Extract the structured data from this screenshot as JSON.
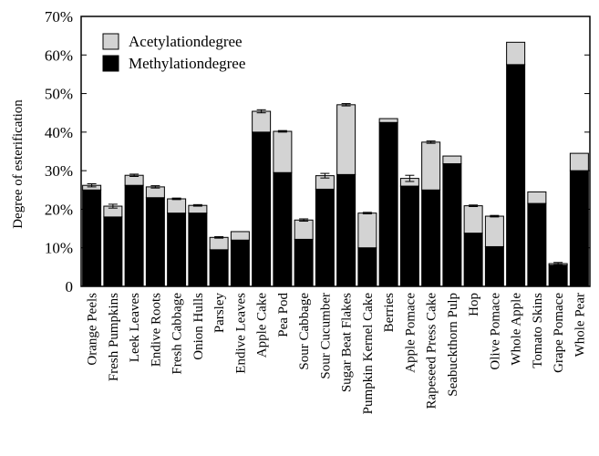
{
  "chart_data": {
    "type": "bar",
    "stacked": true,
    "title": "",
    "xlabel": "",
    "ylabel": "Degree of esterification",
    "ylim": [
      0,
      70
    ],
    "yticks": [
      "0",
      "10%",
      "20%",
      "30%",
      "40%",
      "50%",
      "60%",
      "70%"
    ],
    "categories": [
      "Orange Peels",
      "Fresh Pumpkins",
      "Leek Leaves",
      "Endive Roots",
      "Fresh Cabbage",
      "Onion Hulls",
      "Parsley",
      "Endive Leaves",
      "Apple Cake",
      "Pea Pod",
      "Sour Cabbage",
      "Sour Cucumber",
      "Sugar Beat Flakes",
      "Pumpkin Kernel Cake",
      "Berries",
      "Apple Pomace",
      "Rapeseed Press Cake",
      "Seabuckthorn Pulp",
      "Hop",
      "Olive Pomace",
      "Whole Apple",
      "Tomato Skins",
      "Grape Pomace",
      "Whole Pear"
    ],
    "series": [
      {
        "name": "Methylationdegree",
        "color": "#000000",
        "values": [
          25.0,
          18.0,
          26.2,
          23.0,
          19.0,
          19.0,
          9.5,
          12.0,
          40.0,
          29.5,
          12.2,
          25.2,
          29.0,
          10.0,
          42.5,
          26.0,
          25.0,
          31.8,
          13.8,
          10.3,
          57.5,
          21.5,
          5.5,
          30.0
        ]
      },
      {
        "name": "Acetylationdegree",
        "color": "#d3d3d3",
        "values": [
          1.2,
          2.8,
          2.6,
          2.8,
          3.7,
          2.0,
          3.2,
          2.2,
          5.4,
          10.7,
          5.0,
          3.5,
          18.1,
          9.0,
          1.0,
          2.0,
          12.4,
          2.0,
          7.1,
          7.9,
          5.8,
          3.0,
          0.4,
          4.5
        ]
      }
    ],
    "errors": [
      0.4,
      0.5,
      0.3,
      0.3,
      0.2,
      0.2,
      0.2,
      0,
      0.4,
      0.2,
      0.3,
      0.6,
      0.3,
      0.2,
      0,
      0.8,
      0.3,
      0,
      0.2,
      0.2,
      0,
      0,
      0.3,
      0
    ],
    "legend": {
      "placement": "top-left",
      "entries": [
        "Acetylationdegree",
        "Methylationdegree"
      ]
    },
    "grid": false
  }
}
